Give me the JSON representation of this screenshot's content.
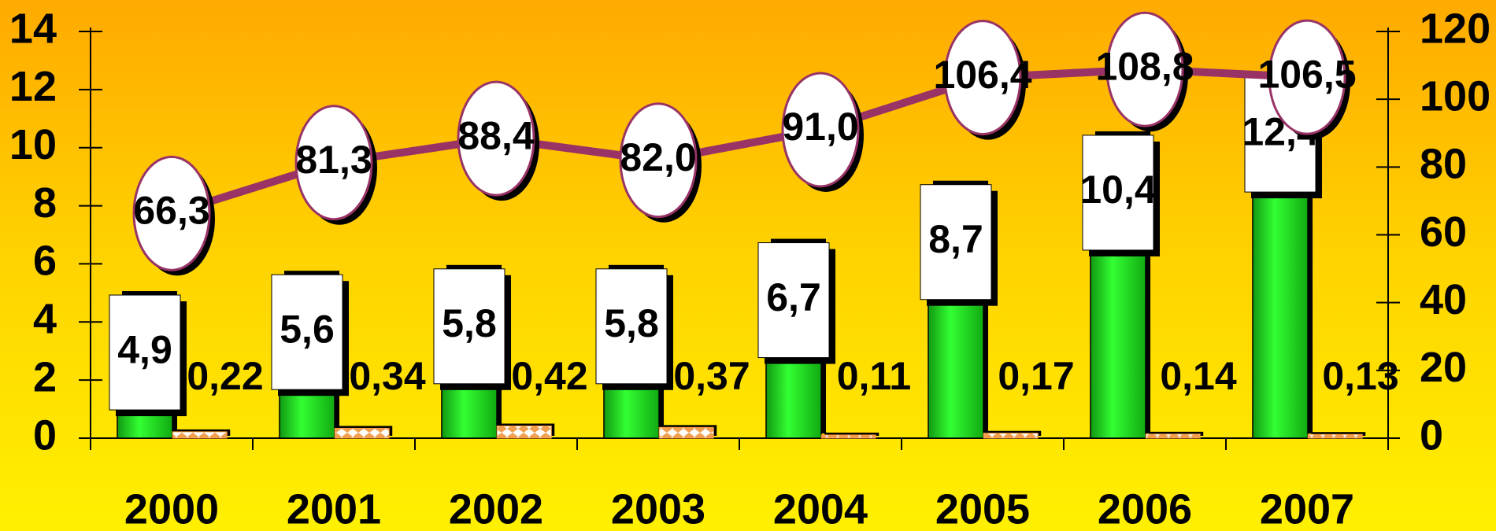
{
  "chart_data": {
    "type": "bar",
    "categories": [
      "2000",
      "2001",
      "2002",
      "2003",
      "2004",
      "2005",
      "2006",
      "2007"
    ],
    "series": [
      {
        "type": "bar",
        "color": "#22dd22",
        "values": [
          4.9,
          5.6,
          5.8,
          5.8,
          6.7,
          8.7,
          10.4,
          12.4
        ],
        "value_labels": [
          "4,9",
          "5,6",
          "5,8",
          "5,8",
          "6,7",
          "8,7",
          "10,4",
          "12,4"
        ]
      },
      {
        "type": "bar",
        "color": "#ff9933",
        "values": [
          0.22,
          0.34,
          0.42,
          0.37,
          0.11,
          0.17,
          0.14,
          0.13
        ],
        "value_labels": [
          "0,22",
          "0,34",
          "0,42",
          "0,37",
          "0,11",
          "0,17",
          "0,14",
          "0,13"
        ]
      },
      {
        "type": "line",
        "axis": "y2",
        "color": "#993366",
        "values": [
          66.3,
          81.3,
          88.4,
          82.0,
          91.0,
          106.4,
          108.8,
          106.5
        ],
        "value_labels": [
          "66,3",
          "81,3",
          "88,4",
          "82,0",
          "91,0",
          "106,4",
          "108,8",
          "106,5"
        ]
      }
    ],
    "ylim": [
      0,
      14
    ],
    "yticks": [
      0,
      2,
      4,
      6,
      8,
      10,
      12,
      14
    ],
    "y2lim": [
      0,
      120
    ],
    "y2ticks": [
      0,
      20,
      40,
      60,
      80,
      100,
      120
    ]
  }
}
